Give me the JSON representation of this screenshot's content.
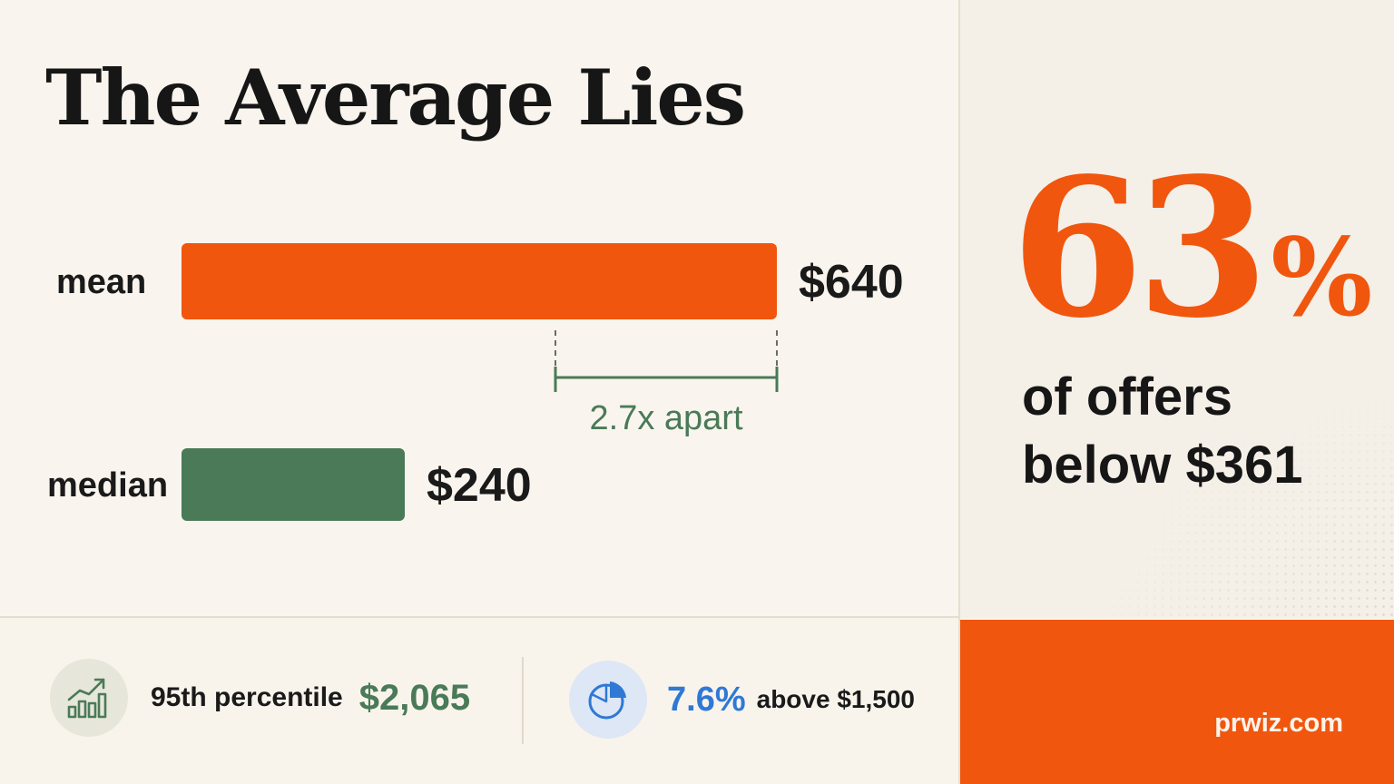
{
  "title": "The Average Lies",
  "chart_data": {
    "type": "bar",
    "orientation": "horizontal",
    "categories": [
      "mean",
      "median"
    ],
    "values": [
      640,
      240
    ],
    "value_labels": [
      "$640",
      "$240"
    ],
    "colors": [
      "#f0560e",
      "#4a7a58"
    ],
    "annotation": "2.7x apart"
  },
  "highlight": {
    "number": "63",
    "symbol": "%",
    "caption_line1": "of offers",
    "caption_line2": "below $361",
    "color": "#f0560e"
  },
  "stats": [
    {
      "icon": "chart-growth-icon",
      "label": "95th percentile",
      "value": "$2,065",
      "color": "#4a7a58"
    },
    {
      "icon": "pie-chart-icon",
      "value": "7.6%",
      "label": "above $1,500",
      "color": "#2f78d6"
    }
  ],
  "brand": {
    "text": "prwiz.com",
    "color": "#f0560e"
  }
}
